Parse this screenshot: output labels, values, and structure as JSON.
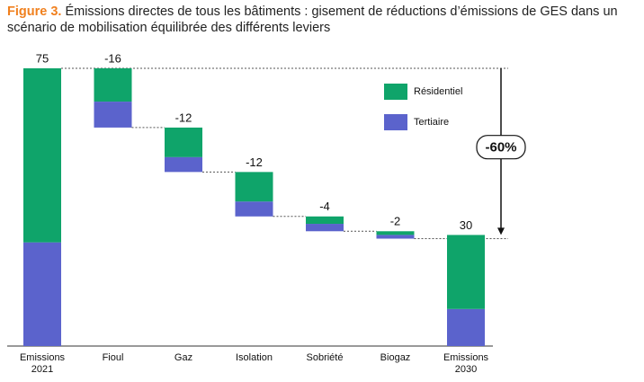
{
  "chart_data": {
    "type": "waterfall",
    "figure_label": "Figure 3.",
    "title": "Émissions directes de tous les bâtiments : gisement de réductions d’émissions de GES dans un scénario de mobilisation équilibrée des différents leviers",
    "categories": [
      "Emissions 2021",
      "Fioul",
      "Gaz",
      "Isolation",
      "Sobriété",
      "Biogaz",
      "Emissions 2030"
    ],
    "series": [
      {
        "name": "Résidentiel",
        "color": "#0fa46a",
        "values": [
          47,
          -9,
          -8,
          -8,
          -2,
          -1,
          20
        ]
      },
      {
        "name": "Tertiaire",
        "color": "#5b63cc",
        "values": [
          28,
          -7,
          -4,
          -4,
          -2,
          -1,
          10
        ]
      }
    ],
    "totals": [
      75,
      -16,
      -12,
      -12,
      -4,
      -2,
      30
    ],
    "annotation": "-60%"
  }
}
